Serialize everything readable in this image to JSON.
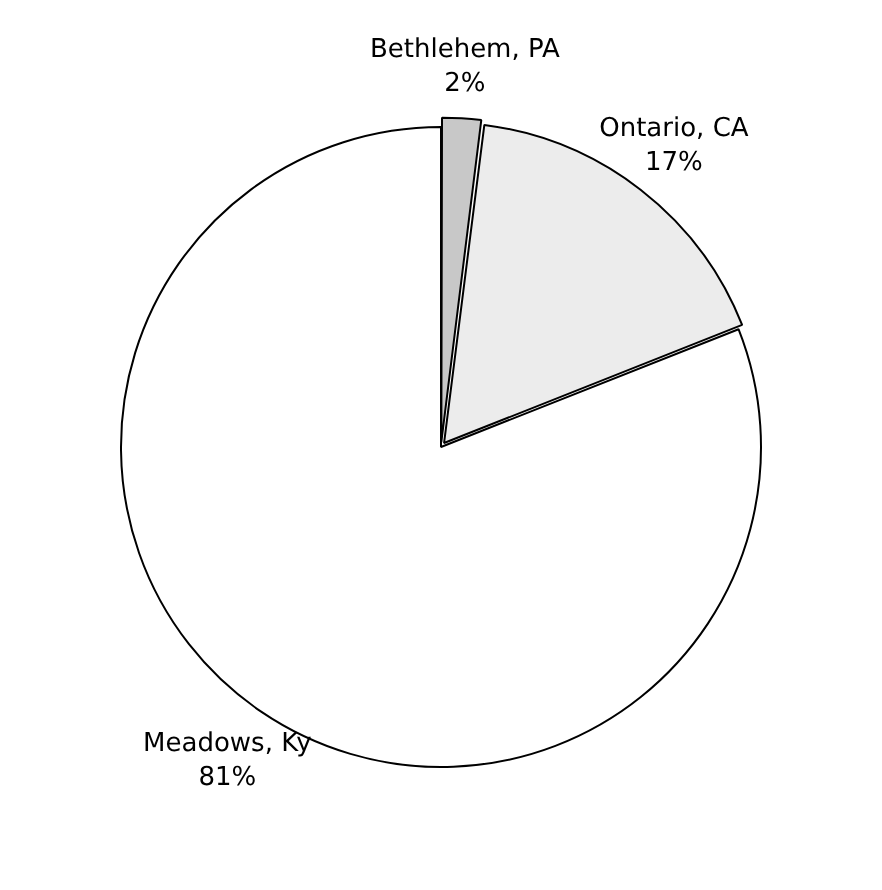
{
  "chart_data": {
    "type": "pie",
    "categories": [
      "Bethlehem, PA",
      "Ontario, CA",
      "Meadows, Ky"
    ],
    "values": [
      2,
      17,
      81
    ],
    "value_labels": [
      "2%",
      "17%",
      "81%"
    ],
    "colors": [
      "#c8c8c8",
      "#ececec",
      "#ffffff"
    ],
    "legend": false
  }
}
